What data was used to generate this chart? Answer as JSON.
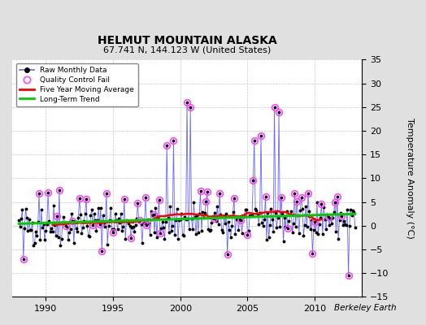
{
  "title": "HELMUT MOUNTAIN ALASKA",
  "subtitle": "67.741 N, 144.123 W (United States)",
  "ylabel": "Temperature Anomaly (°C)",
  "attribution": "Berkeley Earth",
  "ylim": [
    -15,
    35
  ],
  "yticks": [
    -15,
    -10,
    -5,
    0,
    5,
    10,
    15,
    20,
    25,
    30,
    35
  ],
  "xlim": [
    1987.5,
    2013.5
  ],
  "xticks": [
    1990,
    1995,
    2000,
    2005,
    2010
  ],
  "bg_color": "#e0e0e0",
  "plot_bg_color": "#ffffff",
  "raw_line_color": "#6666ff",
  "raw_dot_color": "#000000",
  "qc_fail_color": "#ff44ff",
  "moving_avg_color": "#ff0000",
  "trend_color": "#00cc00",
  "seed": 42
}
